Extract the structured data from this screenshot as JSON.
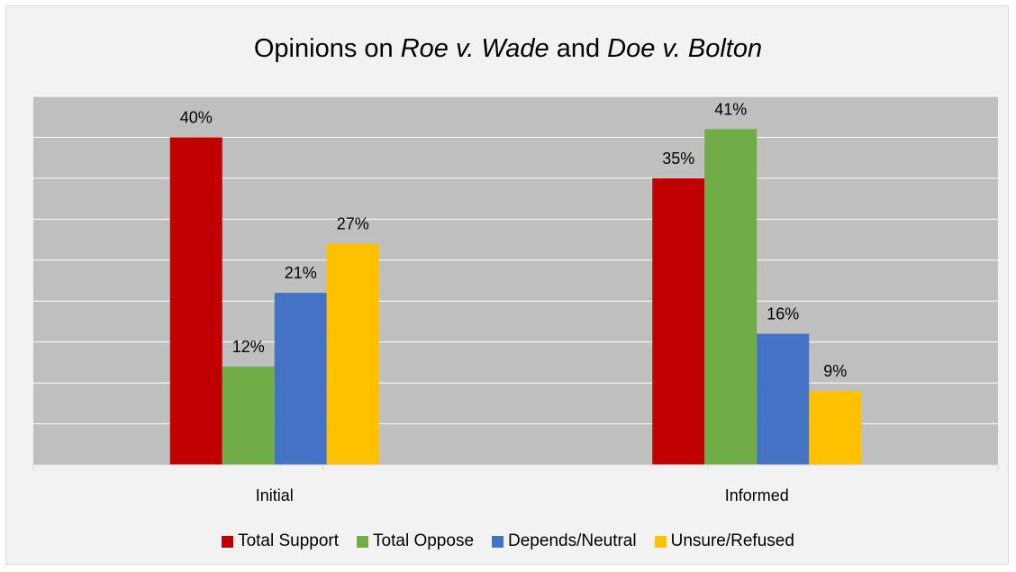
{
  "chart_data": {
    "type": "bar",
    "title_parts": [
      {
        "text": "Opinions on ",
        "italic": false
      },
      {
        "text": "Roe v. Wade",
        "italic": true
      },
      {
        "text": " and ",
        "italic": false
      },
      {
        "text": "Doe v. Bolton",
        "italic": true
      }
    ],
    "categories": [
      "Initial",
      "Informed"
    ],
    "series": [
      {
        "name": "Total Support",
        "color": "#C00000",
        "values": [
          40,
          35
        ],
        "labels": [
          "40%",
          "35%"
        ]
      },
      {
        "name": "Total Oppose",
        "color": "#70AD47",
        "values": [
          12,
          41
        ],
        "labels": [
          "12%",
          "41%"
        ]
      },
      {
        "name": "Depends/Neutral",
        "color": "#4472C4",
        "values": [
          21,
          16
        ],
        "labels": [
          "21%",
          "16%"
        ]
      },
      {
        "name": "Unsure/Refused",
        "color": "#FFC000",
        "values": [
          27,
          9
        ],
        "labels": [
          "27%",
          "9%"
        ]
      }
    ],
    "ylim": [
      0,
      45
    ],
    "grid": true,
    "legend_position": "bottom",
    "plot_background": "#BFBFBF"
  }
}
